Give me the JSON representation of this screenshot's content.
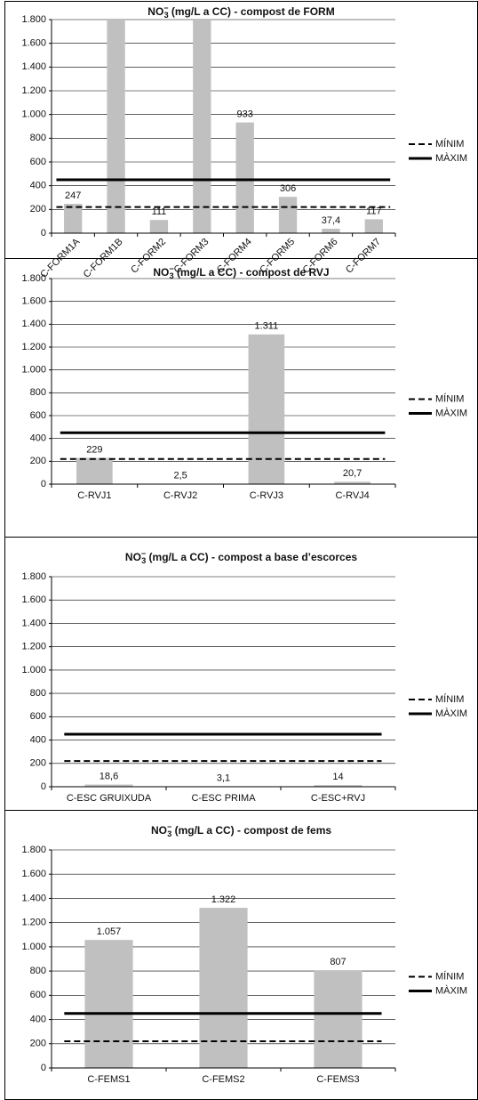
{
  "chart_data": [
    {
      "type": "bar",
      "title_chem": "NO",
      "title_sub": "3",
      "title_sup": "−",
      "title": " (mg/L a CC) - compost de FORM",
      "categories": [
        "C-FORM1A",
        "C-FORM1B",
        "C-FORM2",
        "C-FORM3",
        "C-FORM4",
        "C-FORM5",
        "C-FORM6",
        "C-FORM7"
      ],
      "values": [
        247,
        1800,
        111,
        1800,
        933,
        306,
        37.4,
        117
      ],
      "value_labels": [
        "247",
        null,
        "111",
        null,
        "933",
        "306",
        "37,4",
        "117"
      ],
      "color": "#c0c0c0",
      "label_rotation": -45,
      "ylim": [
        0,
        1800
      ],
      "yticks": [
        0,
        200,
        400,
        600,
        800,
        {
          "value": 1000,
          "label": "1.000"
        },
        {
          "value": 1200,
          "label": "1.200"
        },
        {
          "value": 1400,
          "label": "1.400"
        },
        {
          "value": 1600,
          "label": "1.600"
        },
        {
          "value": 1800,
          "label": "1.800"
        }
      ],
      "grid": true,
      "reference_lines": [
        {
          "name": "MÍNIM",
          "value": 220,
          "style": "dashed",
          "color": "#000000"
        },
        {
          "name": "MÀXIM",
          "value": 450,
          "style": "solid",
          "color": "#000000"
        }
      ],
      "legend": "right"
    },
    {
      "type": "bar",
      "title_chem": "NO",
      "title_sub": "3",
      "title_sup": "−",
      "title": " (mg/L a CC) - compost de RVJ",
      "categories": [
        "C-RVJ1",
        "C-RVJ2",
        "C-RVJ3",
        "C-RVJ4"
      ],
      "values": [
        229,
        2.5,
        1311,
        20.7
      ],
      "value_labels": [
        "229",
        "2,5",
        "1.311",
        "20,7"
      ],
      "color": "#c0c0c0",
      "label_rotation": 0,
      "ylim": [
        0,
        1800
      ],
      "yticks": [
        0,
        200,
        400,
        600,
        800,
        {
          "value": 1000,
          "label": "1.000"
        },
        {
          "value": 1200,
          "label": "1.200"
        },
        {
          "value": 1400,
          "label": "1.400"
        },
        {
          "value": 1600,
          "label": "1.600"
        },
        {
          "value": 1800,
          "label": "1.800"
        }
      ],
      "grid": true,
      "reference_lines": [
        {
          "name": "MÍNIM",
          "value": 220,
          "style": "dashed",
          "color": "#000000"
        },
        {
          "name": "MÀXIM",
          "value": 450,
          "style": "solid",
          "color": "#000000"
        }
      ],
      "legend": "right"
    },
    {
      "type": "bar",
      "title_chem": "NO",
      "title_sub": "3",
      "title_sup": "−",
      "title": " (mg/L a CC) - compost a base d’escorces",
      "categories": [
        "C-ESC GRUIXUDA",
        "C-ESC PRIMA",
        "C-ESC+RVJ"
      ],
      "values": [
        18.6,
        3.1,
        14
      ],
      "value_labels": [
        "18,6",
        "3,1",
        "14"
      ],
      "color": "#c0c0c0",
      "label_rotation": 0,
      "ylim": [
        0,
        1800
      ],
      "yticks": [
        0,
        200,
        400,
        600,
        800,
        {
          "value": 1000,
          "label": "1.000"
        },
        {
          "value": 1200,
          "label": "1.200"
        },
        {
          "value": 1400,
          "label": "1.400"
        },
        {
          "value": 1600,
          "label": "1.600"
        },
        {
          "value": 1800,
          "label": "1.800"
        }
      ],
      "grid": true,
      "reference_lines": [
        {
          "name": "MÍNIM",
          "value": 220,
          "style": "dashed",
          "color": "#000000"
        },
        {
          "name": "MÀXIM",
          "value": 450,
          "style": "solid",
          "color": "#000000"
        }
      ],
      "legend": "right"
    },
    {
      "type": "bar",
      "title_chem": "NO",
      "title_sub": "3",
      "title_sup": "−",
      "title": " (mg/L a CC) - compost de fems",
      "categories": [
        "C-FEMS1",
        "C-FEMS2",
        "C-FEMS3"
      ],
      "values": [
        1057,
        1322,
        807
      ],
      "value_labels": [
        "1.057",
        "1.322",
        "807"
      ],
      "color": "#c0c0c0",
      "label_rotation": 0,
      "ylim": [
        0,
        1800
      ],
      "yticks": [
        0,
        200,
        400,
        600,
        800,
        {
          "value": 1000,
          "label": "1.000"
        },
        {
          "value": 1200,
          "label": "1.200"
        },
        {
          "value": 1400,
          "label": "1.400"
        },
        {
          "value": 1600,
          "label": "1.600"
        },
        {
          "value": 1800,
          "label": "1.800"
        }
      ],
      "grid": true,
      "reference_lines": [
        {
          "name": "MÍNIM",
          "value": 220,
          "style": "dashed",
          "color": "#000000"
        },
        {
          "name": "MÀXIM",
          "value": 450,
          "style": "solid",
          "color": "#000000"
        }
      ],
      "legend": "right"
    }
  ]
}
